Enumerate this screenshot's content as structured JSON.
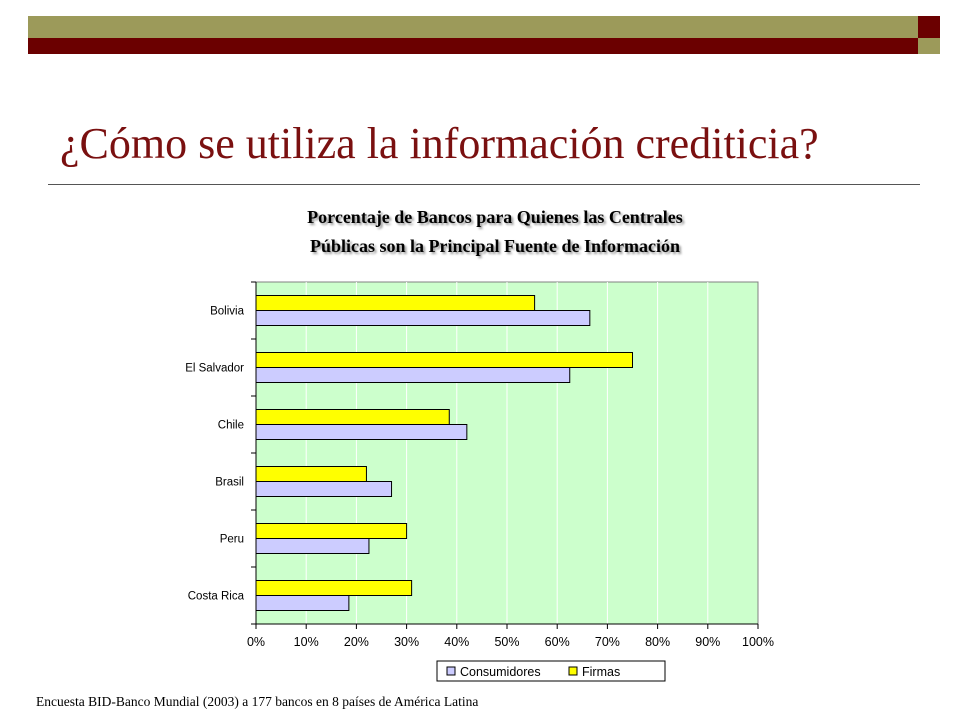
{
  "slide": {
    "title": "¿Cómo se utiliza la información crediticia?",
    "footer": "Encuesta BID-Banco Mundial (2003) a 177 bancos en 8 países de América Latina",
    "colors": {
      "band_olive": "#9c9a5a",
      "band_maroon": "#6b0000",
      "title": "#7a1010"
    }
  },
  "chart_data": {
    "type": "bar",
    "orientation": "horizontal",
    "title_lines": [
      "Porcentaje de Bancos para Quienes las Centrales",
      "Públicas son la Principal Fuente de Información"
    ],
    "categories": [
      "Bolivia",
      "El Salvador",
      "Chile",
      "Brasil",
      "Peru",
      "Costa Rica"
    ],
    "series": [
      {
        "name": "Firmas",
        "color": "#ffff00",
        "values": [
          55.5,
          75,
          38.5,
          22,
          30,
          31
        ]
      },
      {
        "name": "Consumidores",
        "color": "#ccccff",
        "values": [
          66.5,
          62.5,
          42,
          27,
          22.5,
          18.5
        ]
      }
    ],
    "legend_order": [
      "Consumidores",
      "Firmas"
    ],
    "xlim": [
      0,
      100
    ],
    "xticks": [
      "0%",
      "10%",
      "20%",
      "30%",
      "40%",
      "50%",
      "60%",
      "70%",
      "80%",
      "90%",
      "100%"
    ],
    "plot_background": "#ccffcc",
    "grid": true,
    "legend_position": "bottom"
  }
}
